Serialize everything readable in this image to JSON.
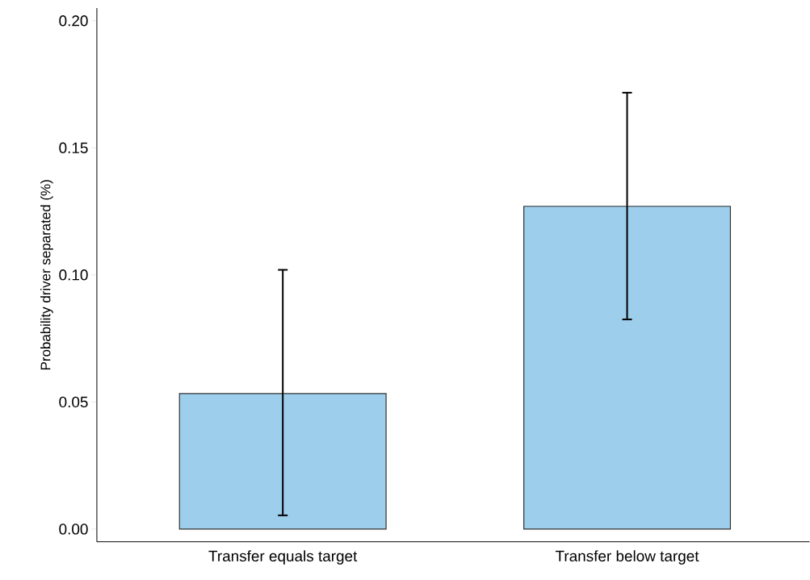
{
  "chart_data": {
    "type": "bar",
    "ylabel": "Probability driver separated (%)",
    "categories": [
      "Transfer equals target",
      "Transfer below target"
    ],
    "values": [
      0.0533,
      0.127
    ],
    "errors": [
      [
        0.0054,
        0.102
      ],
      [
        0.0825,
        0.1717
      ]
    ],
    "color": "#9dceeb",
    "ylim": [
      -0.005,
      0.205
    ],
    "yticks": [
      {
        "value": 0,
        "label": "0.00"
      },
      {
        "value": 0.05,
        "label": "0.05"
      },
      {
        "value": 0.1,
        "label": "0.10"
      },
      {
        "value": 0.15,
        "label": "0.15"
      },
      {
        "value": 0.2,
        "label": "0.20"
      }
    ]
  }
}
